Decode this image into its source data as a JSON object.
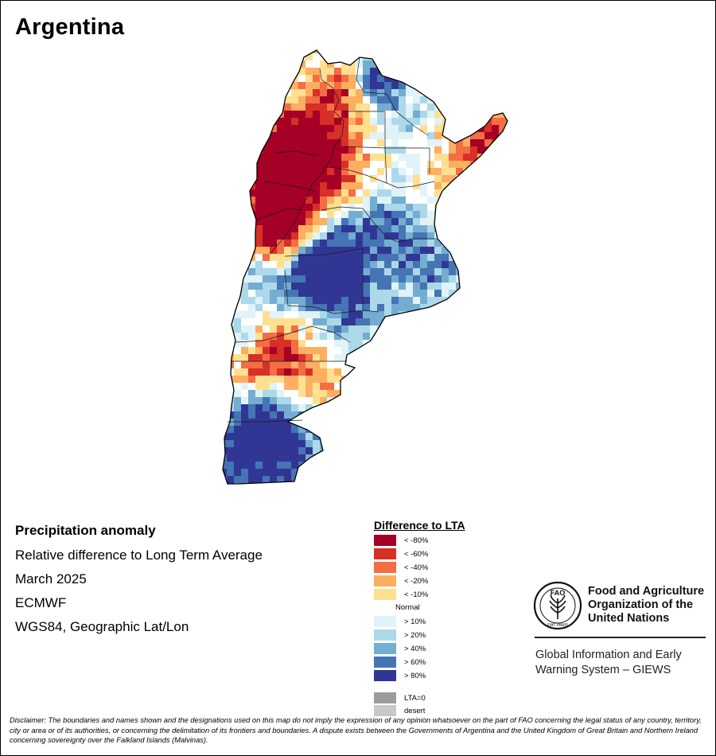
{
  "map": {
    "title": "Argentina",
    "palette": {
      "lt80": "#a50026",
      "lt60": "#d73027",
      "lt40": "#f46d43",
      "lt20": "#fdae61",
      "lt10": "#fee090",
      "normal": "#ffffff",
      "gt10": "#e0f3f8",
      "gt20": "#abd9e9",
      "gt40": "#74add1",
      "gt60": "#4575b4",
      "gt80": "#313695",
      "lta0": "#9c9c9c",
      "desert": "#c8c8c8"
    }
  },
  "info": {
    "title": "Precipitation anomaly",
    "subtitle": "Relative difference to Long Term Average",
    "date": "March 2025",
    "model": "ECMWF",
    "projection": "WGS84, Geographic Lat/Lon"
  },
  "legend": {
    "title": "Difference to LTA",
    "normal_label": "Normal",
    "items": [
      {
        "label": "< -80%",
        "color": "#a50026"
      },
      {
        "label": "< -60%",
        "color": "#d73027"
      },
      {
        "label": "< -40%",
        "color": "#f46d43"
      },
      {
        "label": "< -20%",
        "color": "#fdae61"
      },
      {
        "label": "< -10%",
        "color": "#fee090"
      },
      {
        "label": "> 10%",
        "color": "#e0f3f8"
      },
      {
        "label": "> 20%",
        "color": "#abd9e9"
      },
      {
        "label": "> 40%",
        "color": "#74add1"
      },
      {
        "label": "> 60%",
        "color": "#4575b4"
      },
      {
        "label": "> 80%",
        "color": "#313695"
      },
      {
        "label": "LTA=0",
        "color": "#9c9c9c"
      },
      {
        "label": "desert",
        "color": "#c8c8c8"
      }
    ]
  },
  "branding": {
    "logo_text": "FAO",
    "logo_motto": "FIAT PANIS",
    "org_name_lines": [
      "Food and Agriculture",
      "Organization of the",
      "United Nations"
    ],
    "system_lines": [
      "Global Information and Early",
      "Warning System – GIEWS"
    ]
  },
  "disclaimer": "Disclaimer: The boundaries and names shown and the designations used on this map do not imply the expression of any opinion whatsoever on the part of FAO concerning the legal status of any country, territory, city or area or of its authorities, or concerning the delimitation of its frontiers and boundaries. A dispute exists between the Governments of Argentina and the United Kingdom of Great Britain and Northern Ireland concerning sovereignty over the Falkland Islands (Malvinas)."
}
